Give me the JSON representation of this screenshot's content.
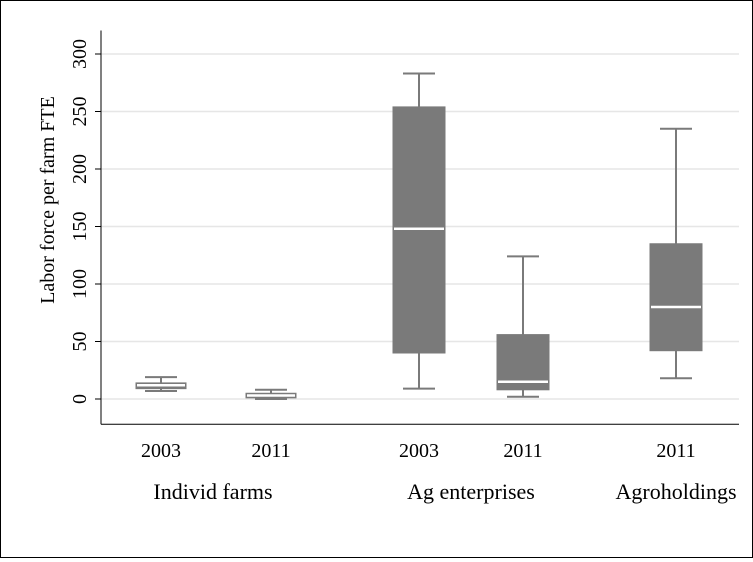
{
  "chart_data": {
    "type": "boxplot",
    "ylabel": "Labor force per farm FTE",
    "ylim": [
      -22,
      310
    ],
    "yticks": [
      0,
      50,
      100,
      150,
      200,
      250,
      300
    ],
    "grid": true,
    "colors": {
      "box_fill": "#7a7a7a",
      "whisker": "#7a7a7a",
      "median": "#ffffff",
      "grid": "#e6e6e6"
    },
    "groups": [
      {
        "label": "Individ farms",
        "boxes": [
          {
            "label": "2003",
            "lower_whisker": 7,
            "q1": 9,
            "median": 12,
            "q3": 14,
            "upper_whisker": 19
          },
          {
            "label": "2011",
            "lower_whisker": 0,
            "q1": 1,
            "median": 3,
            "q3": 5,
            "upper_whisker": 8
          }
        ]
      },
      {
        "label": "Ag enterprises",
        "boxes": [
          {
            "label": "2003",
            "lower_whisker": 9,
            "q1": 40,
            "median": 148,
            "q3": 254,
            "upper_whisker": 283
          },
          {
            "label": "2011",
            "lower_whisker": 2,
            "q1": 8,
            "median": 15,
            "q3": 56,
            "upper_whisker": 124
          }
        ]
      },
      {
        "label": "Agroholdings",
        "boxes": [
          {
            "label": "2011",
            "lower_whisker": 18,
            "q1": 42,
            "median": 80,
            "q3": 135,
            "upper_whisker": 235
          }
        ]
      }
    ]
  }
}
